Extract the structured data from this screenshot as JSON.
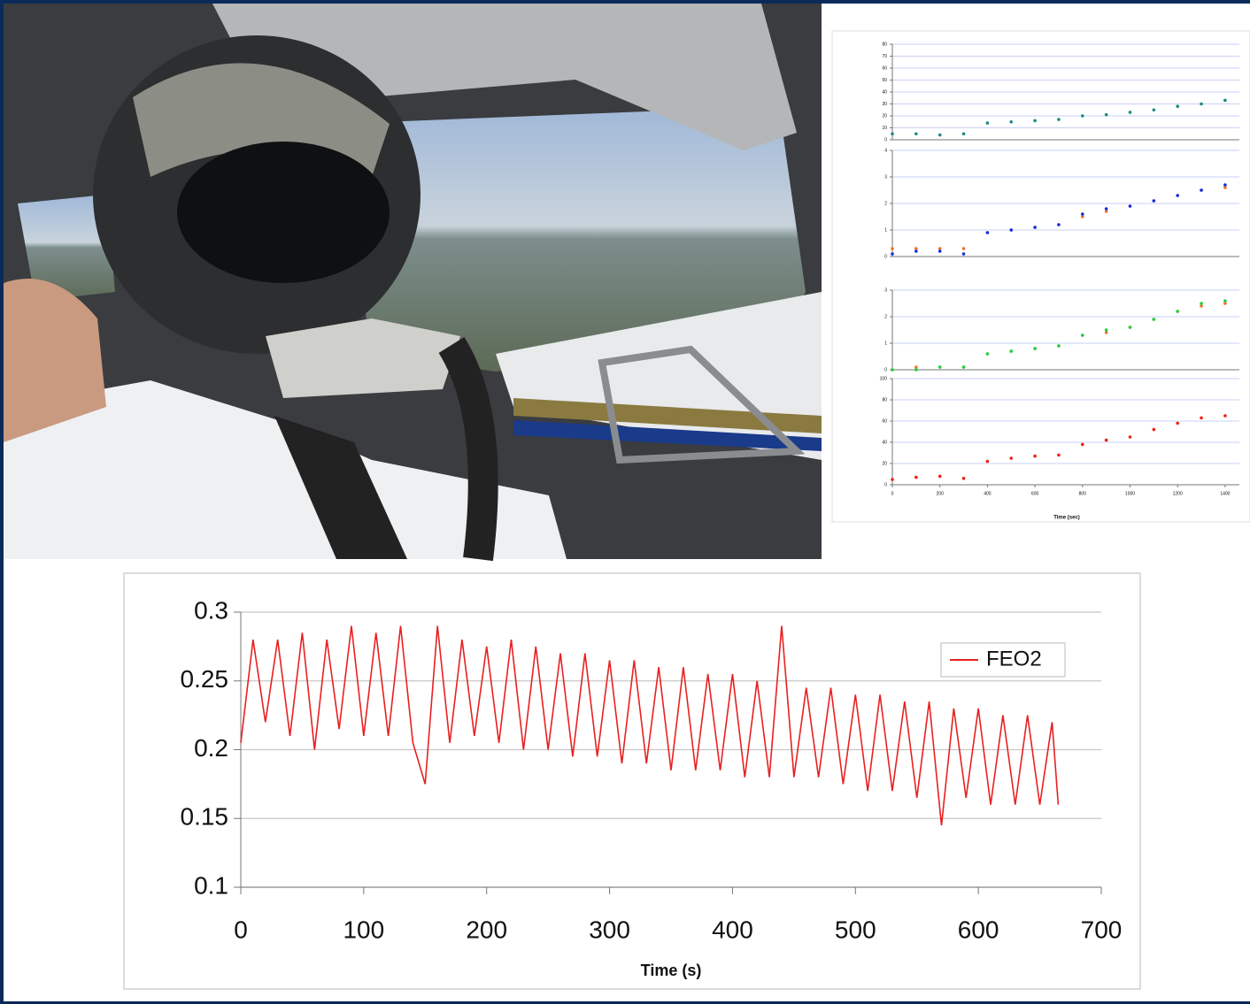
{
  "chart_data": [
    {
      "type": "scatter",
      "x": [
        0,
        100,
        200,
        300,
        400,
        500,
        600,
        700,
        800,
        900,
        1000,
        1100,
        1200,
        1300,
        1400
      ],
      "xlim": [
        0,
        1460
      ],
      "series": [
        {
          "color": "#1a8a80",
          "values": [
            5,
            5,
            4,
            5,
            14,
            15,
            16,
            17,
            20,
            21,
            23,
            25,
            28,
            30,
            33
          ]
        }
      ],
      "ylim": [
        0,
        80
      ],
      "yticks": [
        0,
        10,
        20,
        30,
        40,
        50,
        60,
        70,
        80
      ],
      "grid": true
    },
    {
      "type": "scatter",
      "x": [
        0,
        100,
        200,
        300,
        400,
        500,
        600,
        700,
        800,
        900,
        1000,
        1100,
        1200,
        1300,
        1400
      ],
      "xlim": [
        0,
        1460
      ],
      "series": [
        {
          "color": "#f07030",
          "values": [
            0.3,
            0.3,
            0.3,
            0.3,
            0.9,
            1.0,
            1.1,
            1.2,
            1.5,
            1.7,
            1.9,
            2.1,
            2.3,
            2.5,
            2.6
          ]
        },
        {
          "color": "#1030e0",
          "values": [
            0.1,
            0.2,
            0.2,
            0.1,
            0.9,
            1.0,
            1.1,
            1.2,
            1.6,
            1.8,
            1.9,
            2.1,
            2.3,
            2.5,
            2.7
          ]
        }
      ],
      "ylim": [
        0,
        4
      ],
      "yticks": [
        0,
        1,
        2,
        3,
        4
      ],
      "grid": true
    },
    {
      "type": "scatter",
      "x": [
        0,
        100,
        200,
        300,
        400,
        500,
        600,
        700,
        800,
        900,
        1000,
        1100,
        1200,
        1300,
        1400
      ],
      "xlim": [
        0,
        1460
      ],
      "series": [
        {
          "color": "#f07030",
          "values": [
            0.0,
            0.1,
            0.1,
            0.1,
            0.6,
            0.7,
            0.8,
            0.9,
            1.3,
            1.4,
            1.6,
            1.9,
            2.2,
            2.4,
            2.5
          ]
        },
        {
          "color": "#20d040",
          "values": [
            0.0,
            0.0,
            0.1,
            0.1,
            0.6,
            0.7,
            0.8,
            0.9,
            1.3,
            1.5,
            1.6,
            1.9,
            2.2,
            2.5,
            2.6
          ]
        }
      ],
      "ylim": [
        0,
        3
      ],
      "yticks": [
        0,
        1,
        2,
        3
      ],
      "grid": true
    },
    {
      "type": "scatter",
      "x": [
        0,
        100,
        200,
        300,
        400,
        500,
        600,
        700,
        800,
        900,
        1000,
        1100,
        1200,
        1300,
        1400
      ],
      "xlim": [
        0,
        1460
      ],
      "series": [
        {
          "color": "#f02010",
          "values": [
            5,
            7,
            8,
            6,
            22,
            25,
            27,
            28,
            38,
            42,
            45,
            52,
            58,
            63,
            65
          ]
        }
      ],
      "ylim": [
        0,
        100
      ],
      "yticks": [
        0,
        20,
        40,
        60,
        80,
        100
      ],
      "grid": true,
      "xticks": [
        0,
        200,
        400,
        600,
        800,
        1000,
        1200,
        1400
      ],
      "xlabel": "Time (sec)"
    },
    {
      "type": "line",
      "xlabel": "Time (s)",
      "x": [
        0,
        10,
        20,
        30,
        40,
        50,
        60,
        70,
        80,
        90,
        100,
        110,
        120,
        130,
        140,
        150,
        160,
        170,
        180,
        190,
        200,
        210,
        220,
        230,
        240,
        250,
        260,
        270,
        280,
        290,
        300,
        310,
        320,
        330,
        340,
        350,
        360,
        370,
        380,
        390,
        400,
        410,
        420,
        430,
        440,
        450,
        460,
        470,
        480,
        490,
        500,
        510,
        520,
        530,
        540,
        550,
        560,
        570,
        580,
        590,
        600,
        610,
        620,
        630,
        640,
        650,
        660,
        665
      ],
      "series": [
        {
          "name": "FEO2",
          "color": "#e82020",
          "values": [
            0.205,
            0.28,
            0.22,
            0.28,
            0.21,
            0.285,
            0.2,
            0.28,
            0.215,
            0.29,
            0.21,
            0.285,
            0.21,
            0.29,
            0.205,
            0.175,
            0.29,
            0.205,
            0.28,
            0.21,
            0.275,
            0.205,
            0.28,
            0.2,
            0.275,
            0.2,
            0.27,
            0.195,
            0.27,
            0.195,
            0.265,
            0.19,
            0.265,
            0.19,
            0.26,
            0.185,
            0.26,
            0.185,
            0.255,
            0.185,
            0.255,
            0.18,
            0.25,
            0.18,
            0.29,
            0.18,
            0.245,
            0.18,
            0.245,
            0.175,
            0.24,
            0.17,
            0.24,
            0.17,
            0.235,
            0.165,
            0.235,
            0.145,
            0.23,
            0.165,
            0.23,
            0.16,
            0.225,
            0.16,
            0.225,
            0.16,
            0.22,
            0.16
          ]
        }
      ],
      "xlim": [
        0,
        700
      ],
      "xticks": [
        0,
        100,
        200,
        300,
        400,
        500,
        600,
        700
      ],
      "ylim": [
        0.1,
        0.3
      ],
      "yticks": [
        0.1,
        0.15,
        0.2,
        0.25,
        0.3
      ],
      "grid": true,
      "legend": "upper-right"
    }
  ]
}
